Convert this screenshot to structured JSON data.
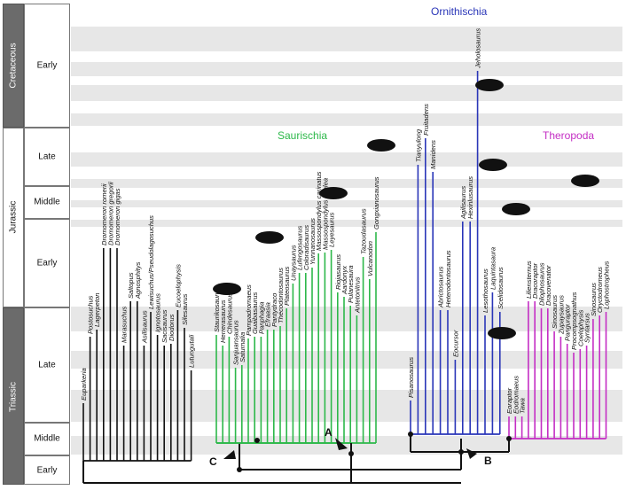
{
  "periods": [
    {
      "id": "cretaceous",
      "label": "Cretaceous"
    },
    {
      "id": "jurassic",
      "label": "Jurassic"
    },
    {
      "id": "triassic",
      "label": "Triassic"
    }
  ],
  "epochs": [
    {
      "id": "cret-early",
      "label": "Early"
    },
    {
      "id": "jur-late",
      "label": "Late"
    },
    {
      "id": "jur-middle",
      "label": "Middle"
    },
    {
      "id": "jur-early",
      "label": "Early"
    },
    {
      "id": "tri-late",
      "label": "Late"
    },
    {
      "id": "tri-middle",
      "label": "Middle"
    },
    {
      "id": "tri-early",
      "label": "Early"
    }
  ],
  "groups": {
    "saurischia": {
      "label": "Saurischia",
      "color": "#2db84a"
    },
    "ornithischia": {
      "label": "Ornithischia",
      "color": "#2a36b8"
    },
    "theropoda": {
      "label": "Theropoda",
      "color": "#c42ec4"
    }
  },
  "markers": {
    "a": "A",
    "b": "B",
    "c": "C"
  },
  "taxa": {
    "black": [
      "Euparkeria",
      "Postosuchus",
      "Lagerpeton",
      "Dromomeron romerii",
      "Dromomeron gregorii",
      "Dromomeron gigas",
      "Marasuchus",
      "Saltopus",
      "Agnosphitys",
      "Asilisaurus",
      "Lewisuchus/Pseudolagosuchus",
      "Ignotosaurus",
      "Sacisaurus",
      "Diodorus",
      "Eucoelophysis",
      "Silesaurus",
      "Lutungutali"
    ],
    "green": [
      "Staurikosaurus",
      "Herrerasaurus",
      "Chindesaurus",
      "Sanjuansaurus",
      "Saturnalia",
      "Pampadromaeus",
      "Guaibasaurus",
      "Panphagia",
      "Efraasia",
      "Pantydraco",
      "Thecodontosaurus",
      "Plateosaurus",
      "Unaysaurus",
      "Lufengosaurus",
      "Coloradisaurus",
      "Yunnanosaurus",
      "Massospondylus carinatus",
      "Massospondylus kaalea",
      "Leyesaurus",
      "Riojasaurus",
      "Aardonyx",
      "Pulanesaura",
      "Antetonitrus",
      "Tazoudasaurus",
      "Vulcanodon",
      "Gongxianosaurus"
    ],
    "blue": [
      "Pisanosaurus",
      "Tianyulong",
      "Fruitadens",
      "Manidens",
      "Abrictosaurus",
      "Heterodontosaurus",
      "Eocursor",
      "Agilisaurus",
      "Hexinlusaurus",
      "Jeholosaurus",
      "Lesothosaurus",
      "Laquintasaura",
      "Scelidosaurus"
    ],
    "magenta": [
      "Eoraptor",
      "Eodromaeus",
      "Tawa",
      "Liliensternus",
      "Dracoraptor",
      "Dilophosaurus",
      "Dracovenator",
      "Sinosaurus",
      "Zupaysaurus",
      "Panguraptor",
      "Procompsognathus",
      "Coelophysis",
      "Syntarsus",
      "Sinosaurus",
      "Oryctodromeus",
      "Lophostropheus"
    ]
  }
}
